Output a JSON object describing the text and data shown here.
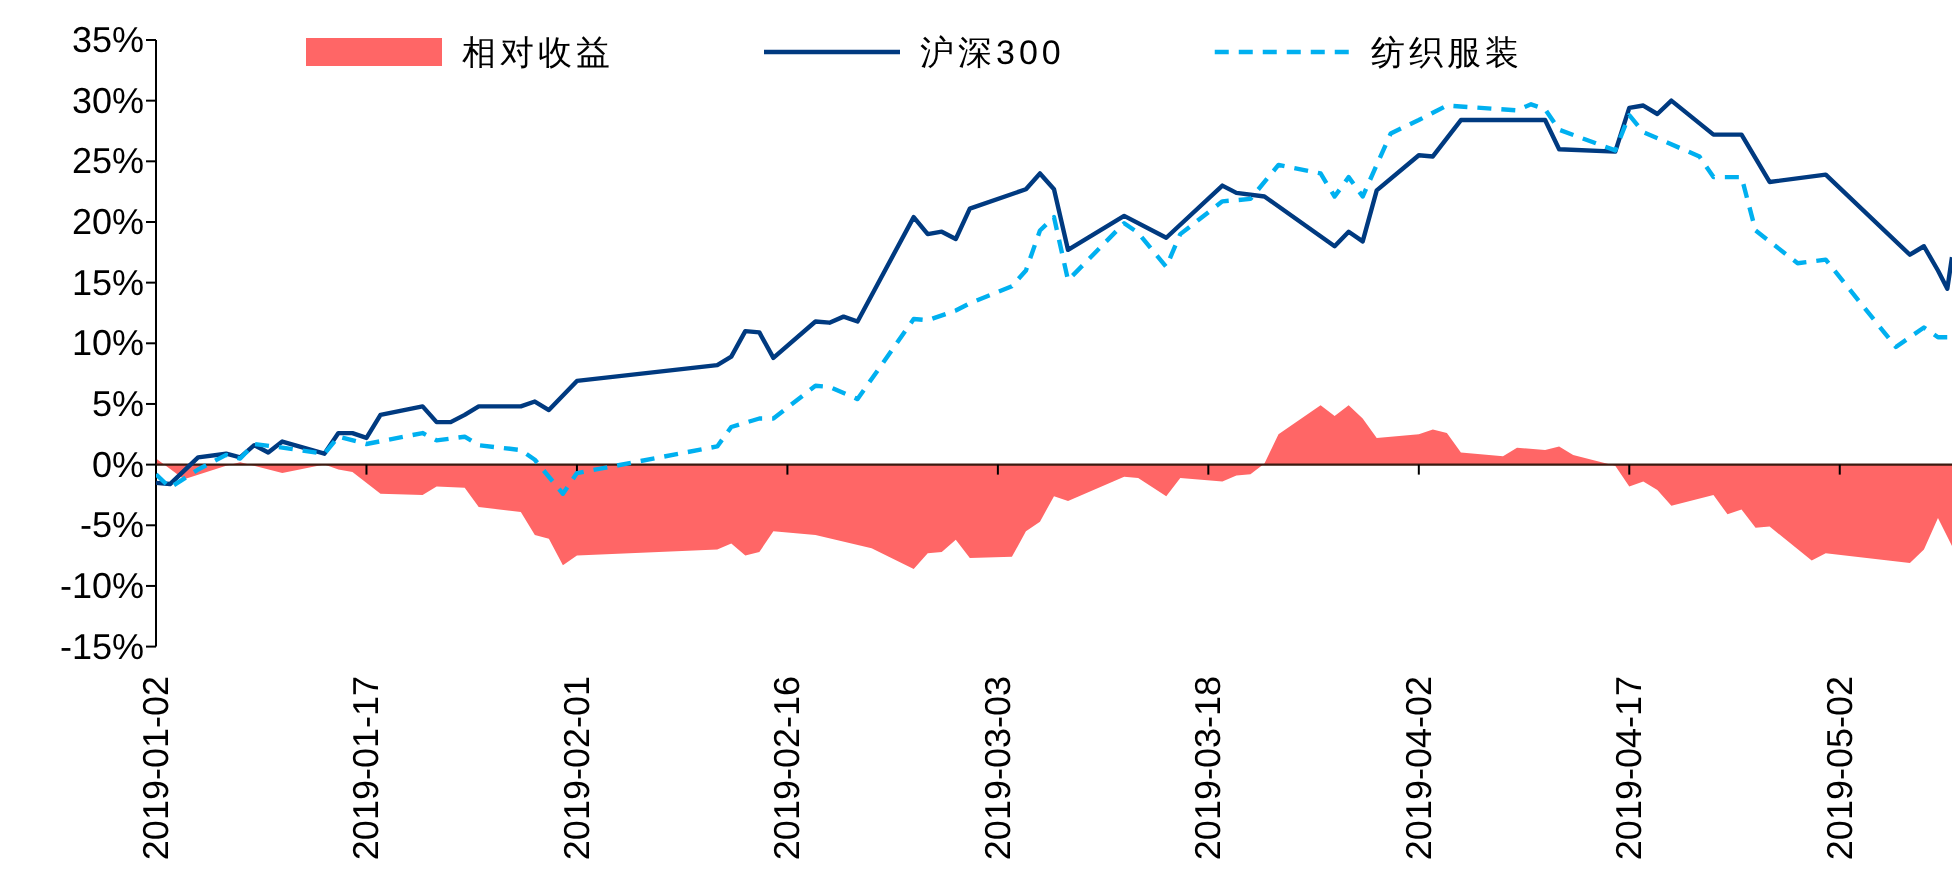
{
  "chart_data": {
    "type": "line",
    "legend": "top",
    "grid": false,
    "xlim": [
      "2019-01-02",
      "2019-05-10"
    ],
    "ylim": [
      -15,
      35
    ],
    "xticks": [
      "2019-01-02",
      "2019-01-17",
      "2019-02-01",
      "2019-02-16",
      "2019-03-03",
      "2019-03-18",
      "2019-04-02",
      "2019-04-17",
      "2019-05-02"
    ],
    "yticks": [
      {
        "value": -15,
        "label": "-15%"
      },
      {
        "value": -10,
        "label": "-10%"
      },
      {
        "value": -5,
        "label": "-5%"
      },
      {
        "value": 0,
        "label": "0%"
      },
      {
        "value": 5,
        "label": "5%"
      },
      {
        "value": 10,
        "label": "10%"
      },
      {
        "value": 15,
        "label": "15%"
      },
      {
        "value": 20,
        "label": "20%"
      },
      {
        "value": 25,
        "label": "25%"
      },
      {
        "value": 30,
        "label": "30%"
      },
      {
        "value": 35,
        "label": "35%"
      }
    ],
    "series": [
      {
        "name": "相对收益",
        "type": "area",
        "color": "#ff6666",
        "x": [
          "2019-01-02",
          "2019-01-04",
          "2019-01-07",
          "2019-01-08",
          "2019-01-11",
          "2019-01-14",
          "2019-01-15",
          "2019-01-16",
          "2019-01-18",
          "2019-01-21",
          "2019-01-22",
          "2019-01-24",
          "2019-01-25",
          "2019-01-28",
          "2019-01-29",
          "2019-01-30",
          "2019-01-31",
          "2019-02-01",
          "2019-02-11",
          "2019-02-12",
          "2019-02-13",
          "2019-02-14",
          "2019-02-15",
          "2019-02-18",
          "2019-02-22",
          "2019-02-25",
          "2019-02-26",
          "2019-02-27",
          "2019-02-28",
          "2019-03-01",
          "2019-03-04",
          "2019-03-05",
          "2019-03-06",
          "2019-03-07",
          "2019-03-08",
          "2019-03-12",
          "2019-03-13",
          "2019-03-15",
          "2019-03-16",
          "2019-03-19",
          "2019-03-20",
          "2019-03-21",
          "2019-03-22",
          "2019-03-23",
          "2019-03-26",
          "2019-03-27",
          "2019-03-28",
          "2019-03-29",
          "2019-03-30",
          "2019-04-02",
          "2019-04-03",
          "2019-04-04",
          "2019-04-05",
          "2019-04-08",
          "2019-04-09",
          "2019-04-11",
          "2019-04-12",
          "2019-04-13",
          "2019-04-16",
          "2019-04-17",
          "2019-04-18",
          "2019-04-19",
          "2019-04-20",
          "2019-04-23",
          "2019-04-24",
          "2019-04-25",
          "2019-04-26",
          "2019-04-27",
          "2019-04-30",
          "2019-05-01",
          "2019-05-07",
          "2019-05-08",
          "2019-05-09",
          "2019-05-10"
        ],
        "values": [
          0.5,
          -1.2,
          -0.1,
          0.2,
          -0.7,
          0,
          -0.4,
          -0.6,
          -2.4,
          -2.5,
          -1.8,
          -1.9,
          -3.5,
          -3.9,
          -5.8,
          -6.1,
          -8.3,
          -7.5,
          -7.0,
          -6.5,
          -7.5,
          -7.2,
          -5.5,
          -5.8,
          -6.9,
          -8.6,
          -7.3,
          -7.2,
          -6.2,
          -7.7,
          -7.6,
          -5.5,
          -4.7,
          -2.6,
          -3.0,
          -1.0,
          -1.1,
          -2.6,
          -1.1,
          -1.4,
          -0.9,
          -0.8,
          0.1,
          2.5,
          4.9,
          4.0,
          4.9,
          3.8,
          2.2,
          2.5,
          2.9,
          2.6,
          1.0,
          0.7,
          1.4,
          1.2,
          1.5,
          0.8,
          -0.1,
          -1.8,
          -1.4,
          -2.1,
          -3.4,
          -2.5,
          -4.1,
          -3.7,
          -5.2,
          -5.1,
          -7.9,
          -7.3,
          -8.1,
          -7.0,
          -4.4,
          -6.7
        ]
      },
      {
        "name": "沪深300",
        "color": "#003a80",
        "line_style": "solid",
        "x": [
          "2019-01-02",
          "2019-01-03",
          "2019-01-05",
          "2019-01-07",
          "2019-01-08",
          "2019-01-09",
          "2019-01-10",
          "2019-01-11",
          "2019-01-14",
          "2019-01-15",
          "2019-01-16",
          "2019-01-17",
          "2019-01-18",
          "2019-01-21",
          "2019-01-22",
          "2019-01-23",
          "2019-01-24",
          "2019-01-25",
          "2019-01-28",
          "2019-01-29",
          "2019-01-30",
          "2019-02-01",
          "2019-02-11",
          "2019-02-12",
          "2019-02-13",
          "2019-02-14",
          "2019-02-15",
          "2019-02-18",
          "2019-02-19",
          "2019-02-20",
          "2019-02-21",
          "2019-02-25",
          "2019-02-26",
          "2019-02-27",
          "2019-02-28",
          "2019-03-01",
          "2019-03-05",
          "2019-03-06",
          "2019-03-07",
          "2019-03-08",
          "2019-03-12",
          "2019-03-15",
          "2019-03-19",
          "2019-03-20",
          "2019-03-22",
          "2019-03-27",
          "2019-03-28",
          "2019-03-29",
          "2019-03-30",
          "2019-04-02",
          "2019-04-03",
          "2019-04-05",
          "2019-04-11",
          "2019-04-12",
          "2019-04-16",
          "2019-04-17",
          "2019-04-18",
          "2019-04-19",
          "2019-04-20",
          "2019-04-23",
          "2019-04-25",
          "2019-04-27",
          "2019-05-01",
          "2019-05-07",
          "2019-05-08",
          "2019-05-09",
          "2019-05-09T16:00",
          "2019-05-10"
        ],
        "values": [
          -1.5,
          -1.6,
          0.6,
          0.9,
          0.6,
          1.6,
          1.0,
          1.9,
          0.9,
          2.6,
          2.6,
          2.2,
          4.1,
          4.8,
          3.5,
          3.5,
          4.1,
          4.8,
          4.8,
          5.2,
          4.5,
          6.9,
          8.2,
          8.9,
          11.0,
          10.9,
          8.8,
          11.8,
          11.7,
          12.2,
          11.8,
          20.4,
          19.0,
          19.2,
          18.6,
          21.1,
          22.7,
          24.0,
          22.7,
          17.7,
          20.5,
          18.7,
          23.0,
          22.4,
          22.1,
          18.0,
          19.2,
          18.4,
          22.6,
          25.5,
          25.4,
          28.4,
          28.4,
          26.0,
          25.8,
          29.4,
          29.6,
          28.9,
          30.0,
          27.2,
          27.2,
          23.3,
          23.9,
          17.3,
          18.0,
          16.0,
          14.5,
          17.1
        ]
      },
      {
        "name": "纺织服装",
        "color": "#00b0f0",
        "line_style": "dashed",
        "x": [
          "2019-01-02",
          "2019-01-03",
          "2019-01-05",
          "2019-01-07",
          "2019-01-08",
          "2019-01-09",
          "2019-01-11",
          "2019-01-14",
          "2019-01-15",
          "2019-01-17",
          "2019-01-21",
          "2019-01-22",
          "2019-01-24",
          "2019-01-25",
          "2019-01-28",
          "2019-01-29",
          "2019-01-31",
          "2019-02-01",
          "2019-02-11",
          "2019-02-12",
          "2019-02-14",
          "2019-02-15",
          "2019-02-18",
          "2019-02-19",
          "2019-02-21",
          "2019-02-25",
          "2019-02-26",
          "2019-02-28",
          "2019-03-01",
          "2019-03-04",
          "2019-03-05",
          "2019-03-06",
          "2019-03-07",
          "2019-03-08",
          "2019-03-12",
          "2019-03-13",
          "2019-03-15",
          "2019-03-16",
          "2019-03-19",
          "2019-03-21",
          "2019-03-23",
          "2019-03-26",
          "2019-03-27",
          "2019-03-28",
          "2019-03-29",
          "2019-03-30",
          "2019-03-31",
          "2019-04-02",
          "2019-04-04",
          "2019-04-09",
          "2019-04-10",
          "2019-04-11",
          "2019-04-12",
          "2019-04-16",
          "2019-04-17",
          "2019-04-18",
          "2019-04-22",
          "2019-04-23",
          "2019-04-25",
          "2019-04-26",
          "2019-04-29",
          "2019-05-01",
          "2019-05-06",
          "2019-05-08",
          "2019-05-09",
          "2019-05-10"
        ],
        "values": [
          -0.8,
          -1.9,
          -0.4,
          0.8,
          0.5,
          1.7,
          1.4,
          0.9,
          2.3,
          1.7,
          2.6,
          2.0,
          2.3,
          1.6,
          1.2,
          0.4,
          -2.4,
          -0.7,
          1.5,
          3.1,
          3.8,
          3.8,
          6.5,
          6.4,
          5.4,
          12.0,
          11.9,
          12.7,
          13.3,
          14.7,
          16.0,
          19.3,
          20.4,
          15.2,
          19.9,
          19.1,
          16.3,
          19.0,
          21.7,
          21.9,
          24.7,
          24.0,
          22.1,
          23.7,
          22.1,
          24.7,
          27.3,
          28.4,
          29.6,
          29.2,
          29.7,
          29.3,
          27.6,
          25.9,
          28.8,
          27.4,
          25.4,
          23.7,
          23.7,
          19.3,
          16.6,
          16.9,
          9.7,
          11.3,
          10.5,
          10.5
        ]
      }
    ]
  }
}
